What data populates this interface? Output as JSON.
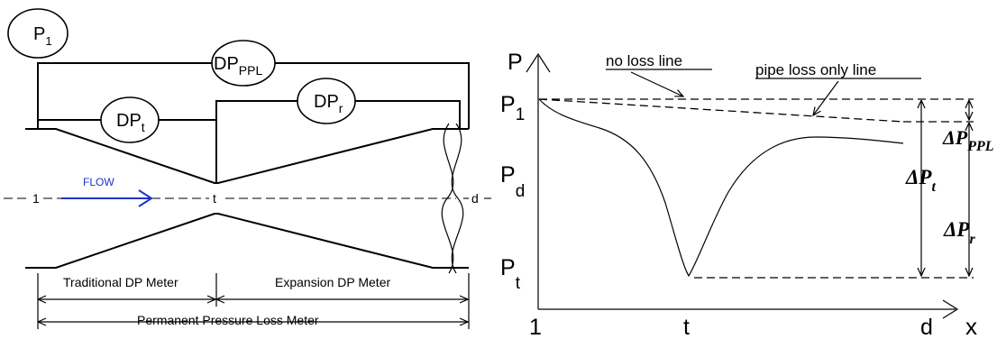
{
  "left_diagram": {
    "gauges": {
      "p1": {
        "main": "P",
        "sub": "1"
      },
      "dp_ppl": {
        "main": "DP",
        "sub": "PPL"
      },
      "dp_t": {
        "main": "DP",
        "sub": "t"
      },
      "dp_r": {
        "main": "DP",
        "sub": "r"
      }
    },
    "centerline": {
      "left": "1",
      "middle": "t",
      "right": "d"
    },
    "flow_label": "FLOW",
    "flow_color": "#1f33c7",
    "spans": {
      "traditional": "Traditional DP Meter",
      "expansion": "Expansion DP Meter",
      "permanent": "Permanent Pressure Loss Meter"
    }
  },
  "right_chart": {
    "axis": {
      "y": "P",
      "x": "x"
    },
    "x_ticks": [
      "1",
      "t",
      "d"
    ],
    "y_labels": {
      "p1": {
        "main": "P",
        "sub": "1"
      },
      "pd": {
        "main": "P",
        "sub": "d"
      },
      "pt": {
        "main": "P",
        "sub": "t"
      }
    },
    "annotations": {
      "no_loss": "no loss line",
      "pipe_loss": "pipe loss only line"
    },
    "deltas": {
      "ppl": {
        "main": "ΔP",
        "sub": "PPL"
      },
      "t": {
        "main": "ΔP",
        "sub": "t"
      },
      "r": {
        "main": "ΔP",
        "sub": "r"
      }
    }
  }
}
